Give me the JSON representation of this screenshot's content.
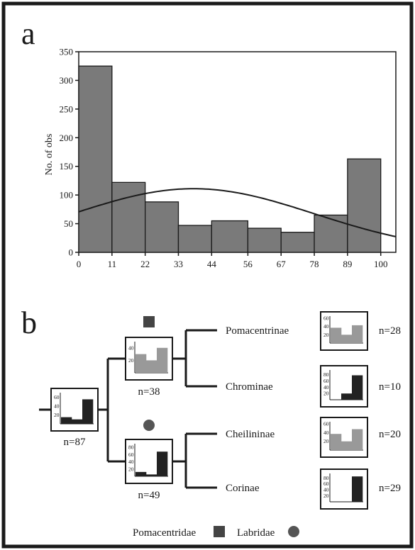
{
  "panel_a": {
    "label": "a",
    "chart_data": {
      "type": "bar",
      "categories": [
        "0–11",
        "11–22",
        "22–33",
        "33–44",
        "44–56",
        "56–67",
        "67–78",
        "78–89",
        "89–100"
      ],
      "x_edges": [
        0,
        11,
        22,
        33,
        44,
        56,
        67,
        78,
        89,
        100
      ],
      "x_tick_labels": [
        "0",
        "11",
        "22",
        "33",
        "44",
        "56",
        "67",
        "78",
        "89",
        "100"
      ],
      "values": [
        325,
        122,
        88,
        47,
        55,
        42,
        35,
        65,
        163
      ],
      "ylabel": "No. of obs",
      "xlabel": "",
      "ylim": [
        0,
        350
      ],
      "y_ticks": [
        0,
        50,
        100,
        150,
        200,
        250,
        300,
        350
      ],
      "normal_curve": {
        "mean": 38,
        "sd": 40,
        "peak": 111
      },
      "bar_color": "#7a7a7a"
    }
  },
  "panel_b": {
    "label": "b",
    "root": {
      "n_label": "n=87",
      "y_ticks": [
        "60",
        "40",
        "20"
      ],
      "bars": [
        15,
        10,
        55
      ],
      "ymax": 70,
      "colors": [
        "#222222",
        "#222222",
        "#222222"
      ]
    },
    "pomacentridae_node": {
      "n_label": "n=38",
      "y_ticks": [
        "40",
        "20"
      ],
      "bars": [
        30,
        20,
        40
      ],
      "ymax": 50,
      "colors": [
        "#999999",
        "#999999",
        "#999999"
      ]
    },
    "labridae_node": {
      "n_label": "n=49",
      "y_ticks": [
        "80",
        "60",
        "40",
        "20"
      ],
      "bars": [
        12,
        5,
        68
      ],
      "ymax": 90,
      "colors": [
        "#222222",
        "#222222",
        "#222222"
      ]
    },
    "leaves": [
      {
        "name": "Pomacentrinae",
        "n_label": "n=28",
        "y_ticks": [
          "60",
          "40",
          "20"
        ],
        "bars": [
          37,
          20,
          43
        ],
        "ymax": 65,
        "colors": [
          "#999999",
          "#999999",
          "#999999"
        ]
      },
      {
        "name": "Chrominae",
        "n_label": "n=10",
        "y_ticks": [
          "80",
          "60",
          "40",
          "20"
        ],
        "bars": [
          0,
          20,
          78
        ],
        "ymax": 95,
        "colors": [
          "#222222",
          "#222222",
          "#222222"
        ]
      },
      {
        "name": "Cheilininae",
        "n_label": "n=20",
        "y_ticks": [
          "60",
          "40",
          "20"
        ],
        "bars": [
          37,
          20,
          48
        ],
        "ymax": 65,
        "colors": [
          "#999999",
          "#999999",
          "#999999"
        ]
      },
      {
        "name": "Corinae",
        "n_label": "n=29",
        "y_ticks": [
          "80",
          "60",
          "40",
          "20"
        ],
        "bars": [
          0,
          0,
          85
        ],
        "ymax": 95,
        "colors": [
          "#222222",
          "#222222",
          "#222222"
        ]
      }
    ],
    "legend": {
      "pomacentridae": "Pomacentridae",
      "labridae": "Labridae"
    }
  }
}
